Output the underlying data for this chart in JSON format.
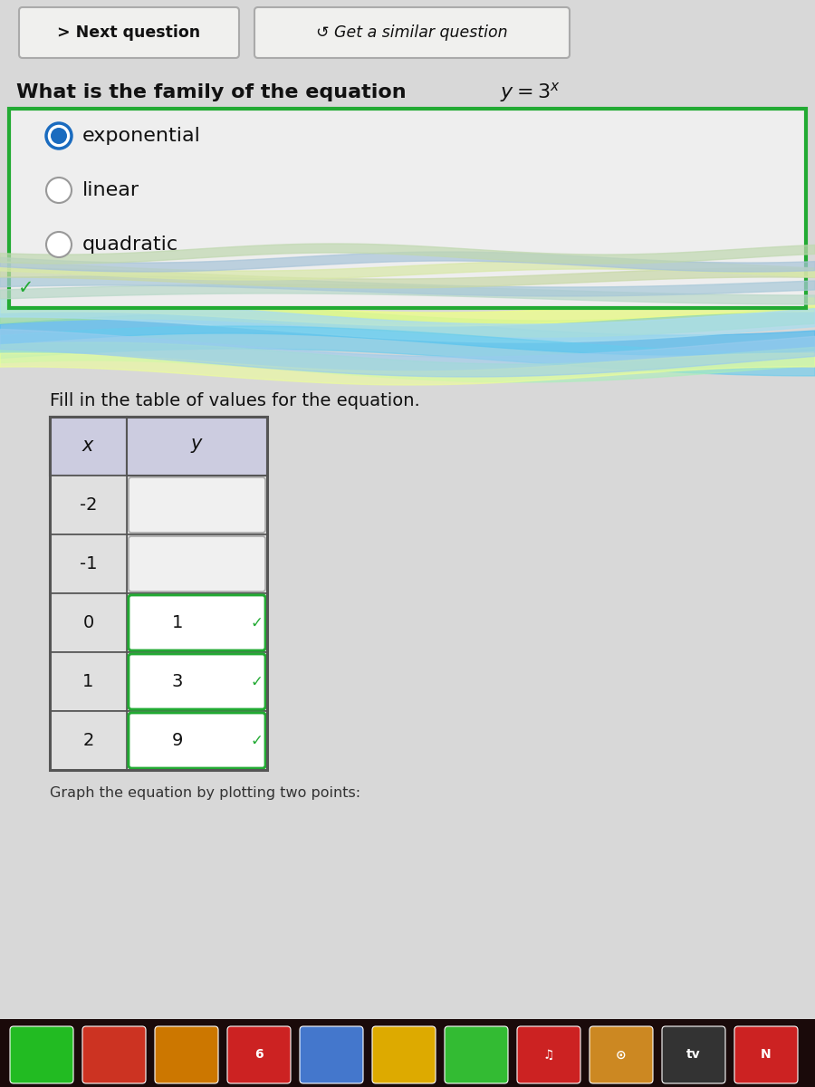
{
  "bg_top_color": "#e8e4c8",
  "bg_main_color": "#d8d8d8",
  "bg_white": "#ffffff",
  "btn_next_text": "> Next question",
  "btn_similar_text": "↺ Get a similar question",
  "btn_border": "#aaaaaa",
  "btn_bg": "#f0f0ee",
  "question_full": "What is the family of the equation ",
  "equation_math": "$y = 3^x$",
  "answer_box_border": "#22aa33",
  "answer_box_bg": "#eeeeee",
  "answer_box_wave_bg": "#c8d8c0",
  "radio_selected": "exponential",
  "radio_options": [
    "exponential",
    "linear",
    "quadratic"
  ],
  "radio_selected_color": "#1a6bbf",
  "radio_unselected_color": "#888888",
  "checkmark_color": "#22aa33",
  "table_header_bg": "#cccce0",
  "table_border_color": "#555555",
  "table_correct_border": "#22aa33",
  "table_empty_cell_bg": "#ffffff",
  "table_correct_cell_bg": "#ffffff",
  "table_x_col_bg": "#e0e0e0",
  "table_rows": [
    {
      "x": "-2",
      "y": "",
      "correct": false
    },
    {
      "x": "-1",
      "y": "",
      "correct": false
    },
    {
      "x": "0",
      "y": "1",
      "correct": true
    },
    {
      "x": "1",
      "y": "3",
      "correct": true
    },
    {
      "x": "2",
      "y": "9",
      "correct": true
    }
  ],
  "fill_table_label": "Fill in the table of values for the equation.",
  "graph_label": "Graph the equation by plotting two points:",
  "dock_bg": "#1a0a0a",
  "dock_icon_colors": [
    "#33cc44",
    "#dd3333",
    "#cc7722",
    "#cc2222",
    "#4488cc",
    "#ddaa00",
    "#33cc44",
    "#dd3333",
    "#dd2222"
  ],
  "dock_icon_labels": [
    "",
    "",
    "",
    "6",
    "",
    "",
    "",
    "♫",
    "⊙",
    "tv",
    "N"
  ],
  "wave_colors_inner": [
    "#aaddcc",
    "#99ccdd",
    "#ccddaa",
    "#ddeeaa",
    "#aaccdd"
  ],
  "wave_colors_outer": [
    "#88ccee",
    "#aaddbb",
    "#eeeebb",
    "#cceeee"
  ]
}
